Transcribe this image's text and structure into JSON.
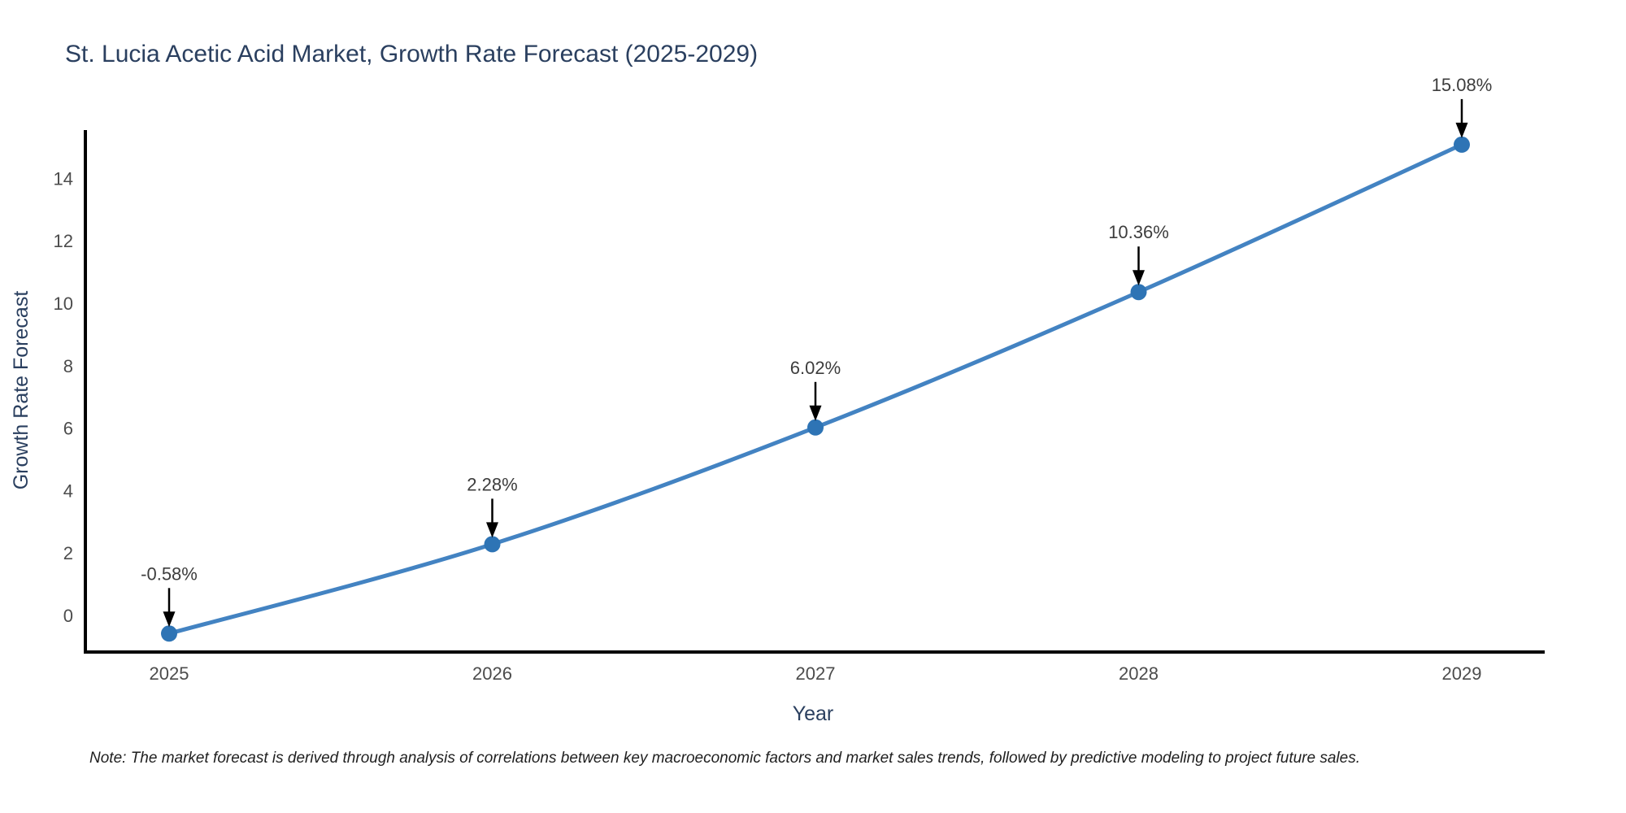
{
  "chart_data": {
    "type": "line",
    "title": "St. Lucia Acetic Acid Market, Growth Rate Forecast (2025-2029)",
    "xlabel": "Year",
    "ylabel": "Growth Rate Forecast",
    "note": "Note: The market forecast is derived through analysis of correlations between key macroeconomic factors and market sales trends, followed by predictive modeling to project future sales.",
    "x": [
      2025,
      2026,
      2027,
      2028,
      2029
    ],
    "values": [
      -0.58,
      2.28,
      6.02,
      10.36,
      15.08
    ],
    "point_labels": [
      "-0.58%",
      "2.28%",
      "6.02%",
      "10.36%",
      "15.08%"
    ],
    "yticks": [
      0,
      2,
      4,
      6,
      8,
      10,
      12,
      14
    ],
    "ylim": [
      -1.2,
      15.6
    ],
    "grid": false,
    "legend": "none",
    "marker_style": "circle-with-down-arrow-annotation",
    "colors": {
      "line": "#4383c2",
      "marker": "#2e74b5",
      "axis": "#000000",
      "arrow": "#000000",
      "title_text": "#2a3f5f",
      "tick_text": "#4c4c4c",
      "annotation_text": "#3d3d3d",
      "note_text": "#1f1f1f",
      "background": "#ffffff"
    }
  }
}
